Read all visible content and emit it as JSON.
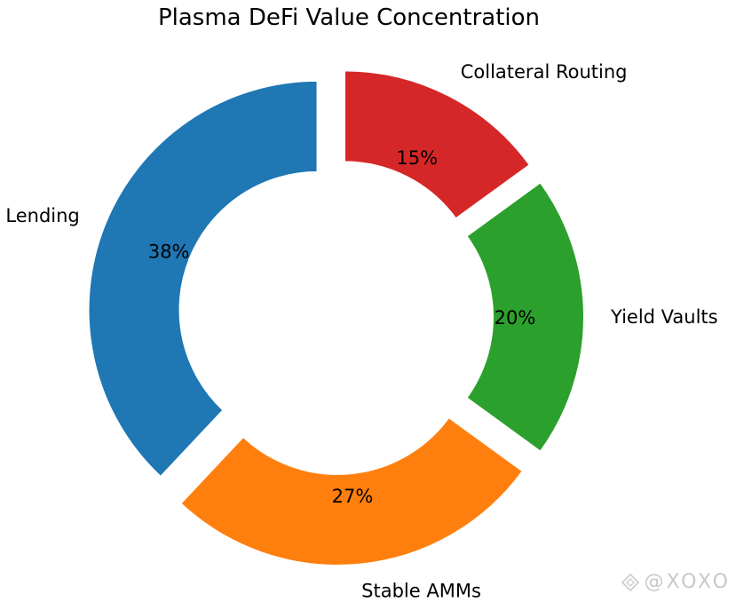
{
  "chart_data": {
    "type": "pie",
    "title": "Plasma DeFi Value Concentration",
    "slices": [
      {
        "label": "Lending",
        "value": 38,
        "pct_label": "38%",
        "color": "#1f77b4"
      },
      {
        "label": "Stable AMMs",
        "value": 27,
        "pct_label": "27%",
        "color": "#ff7f0e"
      },
      {
        "label": "Yield Vaults",
        "value": 20,
        "pct_label": "20%",
        "color": "#2ca02c"
      },
      {
        "label": "Collateral Routing",
        "value": 15,
        "pct_label": "15%",
        "color": "#d62728"
      }
    ],
    "donut": true,
    "exploded": true
  },
  "watermark": {
    "text": "@XOXO"
  }
}
